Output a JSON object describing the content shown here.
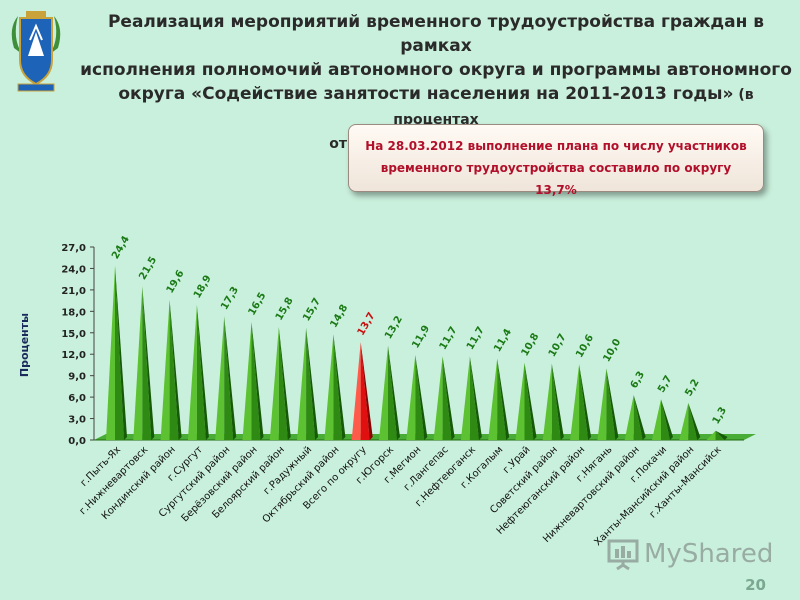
{
  "title": {
    "line1": "Реализация мероприятий временного трудоустройства граждан в рамках",
    "line2": "исполнения полномочий автономного округа и программы автономного",
    "line3": "округа «Содействие занятости населения на 2011-2013 годы»",
    "line3_note": " (в процентах",
    "line4": "от плановой численности)"
  },
  "callout": {
    "line1": "На 28.03.2012 выполнение плана по числу участников",
    "line2": "временного трудоустройства составило по округу 13,7%"
  },
  "chart_data": {
    "type": "bar",
    "ylabel": "Проценты",
    "ylim": [
      0,
      27
    ],
    "yticks": [
      "0,0",
      "3,0",
      "6,0",
      "9,0",
      "12,0",
      "15,0",
      "18,0",
      "21,0",
      "24,0",
      "27,0"
    ],
    "categories": [
      "г.Пыть-Ях",
      "г.Нижневартовск",
      "Кондинский район",
      "г.Сургут",
      "Сургутский район",
      "Берёзовский район",
      "Белоярский район",
      "г.Радужный",
      "Октябрьский район",
      "Всего по округу",
      "г.Югорск",
      "г.Мегион",
      "г.Лангепас",
      "г.Нефтеюганск",
      "г.Когалым",
      "г.Урай",
      "Советский район",
      "Нефтеюганский район",
      "г.Нягань",
      "Нижневартовский район",
      "г.Покачи",
      "Ханты-Мансийский район",
      "г.Ханты-Мансийск"
    ],
    "values": [
      24.4,
      21.5,
      19.6,
      18.9,
      17.3,
      16.5,
      15.8,
      15.7,
      14.8,
      13.7,
      13.2,
      11.9,
      11.7,
      11.7,
      11.4,
      10.8,
      10.7,
      10.6,
      10.0,
      6.3,
      5.7,
      5.2,
      1.3
    ],
    "value_labels": [
      "24,4",
      "21,5",
      "19,6",
      "18,9",
      "17,3",
      "16,5",
      "15,8",
      "15,7",
      "14,8",
      "13,7",
      "13,2",
      "11,9",
      "11,7",
      "11,7",
      "11,4",
      "10,8",
      "10,7",
      "10,6",
      "10,0",
      "6,3",
      "5,7",
      "5,2",
      "1,3"
    ],
    "highlight_index": 9,
    "colors": {
      "bar": "#2e8a12",
      "bar_light": "#5cc232",
      "bar_dark": "#155a06",
      "highlight": "#e01010",
      "highlight_light": "#ff5a4a",
      "highlight_dark": "#8c0000",
      "label": "#1b7a16",
      "highlight_label": "#c81010",
      "floor": "#33a01a"
    }
  },
  "page_number": "20",
  "watermark": "MyShared"
}
